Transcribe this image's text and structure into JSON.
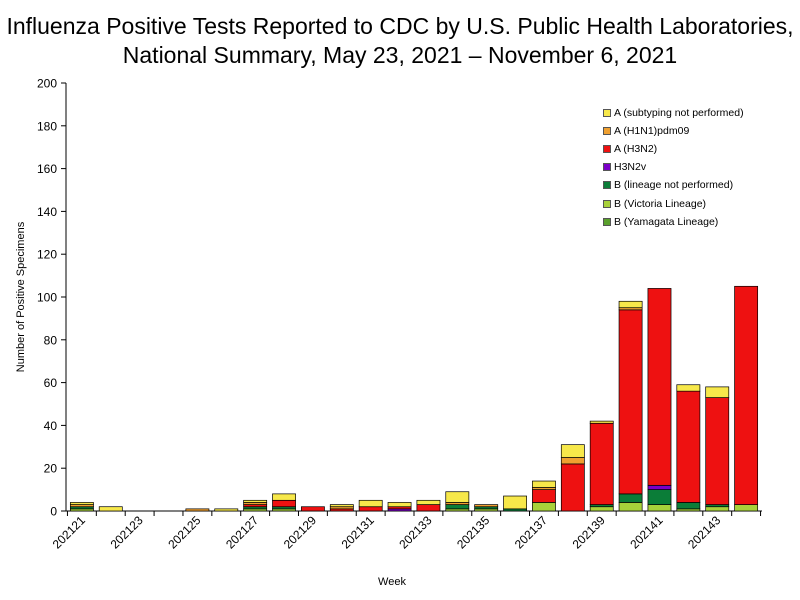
{
  "title_line1": "Influenza Positive Tests Reported to CDC by U.S. Public Health Laboratories,",
  "title_line2": "National Summary, May 23, 2021 – November 6, 2021",
  "chart_data": {
    "type": "bar",
    "stacked": true,
    "title": "Influenza Positive Tests Reported to CDC by U.S. Public Health Laboratories, National Summary, May 23, 2021 – November 6, 2021",
    "xlabel": "Week",
    "ylabel": "Number of Positive Specimens",
    "ylim": [
      0,
      200
    ],
    "yticks": [
      0,
      20,
      40,
      60,
      80,
      100,
      120,
      140,
      160,
      180,
      200
    ],
    "categories": [
      "202121",
      "202122",
      "202123",
      "202124",
      "202125",
      "202126",
      "202127",
      "202128",
      "202129",
      "202130",
      "202131",
      "202132",
      "202133",
      "202134",
      "202135",
      "202136",
      "202137",
      "202138",
      "202139",
      "202140",
      "202141",
      "202142",
      "202143",
      "202144"
    ],
    "xtick_labels": [
      "202121",
      "202123",
      "202125",
      "202127",
      "202129",
      "202131",
      "202133",
      "202135",
      "202137",
      "202139",
      "202141",
      "202143"
    ],
    "legend_position": "top-right",
    "series": [
      {
        "name": "B (Yamagata Lineage)",
        "color": "#5aa02c",
        "values": [
          0,
          0,
          0,
          0,
          0,
          0,
          0,
          0,
          0,
          0,
          0,
          0,
          0,
          0,
          0,
          0,
          0,
          0,
          0,
          0,
          0,
          0,
          0,
          0
        ]
      },
      {
        "name": "B (Victoria Lineage)",
        "color": "#a8d13a",
        "values": [
          1,
          0,
          0,
          0,
          0,
          0,
          1,
          1,
          0,
          0,
          0,
          0,
          0,
          1,
          1,
          0,
          4,
          0,
          2,
          4,
          3,
          1,
          2,
          3
        ]
      },
      {
        "name": "B (lineage not performed)",
        "color": "#0b7d38",
        "values": [
          1,
          0,
          0,
          0,
          0,
          0,
          1,
          1,
          0,
          0,
          0,
          0,
          0,
          2,
          1,
          1,
          0,
          0,
          1,
          4,
          7,
          3,
          1,
          0
        ]
      },
      {
        "name": "H3N2v",
        "color": "#7b00c8",
        "values": [
          0,
          0,
          0,
          0,
          0,
          0,
          0,
          0,
          0,
          0,
          0,
          1,
          0,
          0,
          0,
          0,
          0,
          0,
          0,
          0,
          2,
          0,
          0,
          0
        ]
      },
      {
        "name": "A (H3N2)",
        "color": "#ee1111",
        "values": [
          0,
          0,
          0,
          0,
          0,
          0,
          1,
          3,
          2,
          1,
          2,
          1,
          3,
          0,
          0,
          0,
          6,
          22,
          38,
          86,
          92,
          52,
          50,
          102
        ]
      },
      {
        "name": "A (H1N1)pdm09",
        "color": "#f0a030",
        "values": [
          1,
          0,
          0,
          0,
          1,
          0,
          1,
          0,
          0,
          1,
          0,
          0,
          0,
          1,
          1,
          0,
          1,
          3,
          0,
          1,
          0,
          0,
          0,
          0
        ]
      },
      {
        "name": "A (subtyping not performed)",
        "color": "#f7e84a",
        "values": [
          1,
          2,
          0,
          0,
          0,
          1,
          1,
          3,
          0,
          1,
          3,
          2,
          2,
          5,
          0,
          6,
          3,
          6,
          1,
          3,
          0,
          3,
          5,
          0
        ]
      }
    ]
  }
}
